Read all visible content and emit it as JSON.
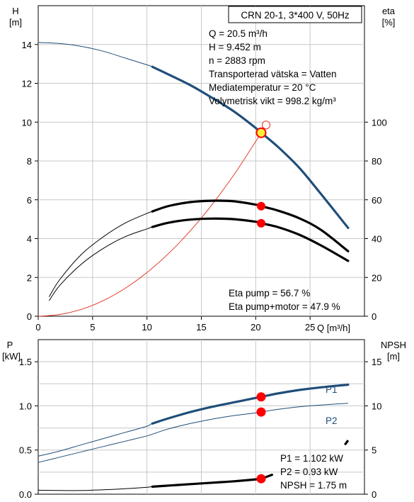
{
  "chart_data": [
    {
      "type": "line",
      "title": "CRN 20-1, 3*400 V, 50Hz",
      "xlabel": "Q [m³/h]",
      "ylabel": "H",
      "ylabel_unit": "[m]",
      "y2label": "eta",
      "y2label_unit": "[%]",
      "xlim": [
        0,
        30
      ],
      "xticks": [
        "0",
        "5",
        "10",
        "15",
        "20",
        "25"
      ],
      "ylim": [
        0,
        16
      ],
      "yticks": [
        "0",
        "2",
        "4",
        "6",
        "8",
        "10",
        "12",
        "14"
      ],
      "y2lim": [
        0,
        160
      ],
      "y2ticks": [
        "0",
        "20",
        "40",
        "60",
        "80",
        "100"
      ],
      "grid": true,
      "info_lines": [
        "Q = 20.5 m³/h",
        "H = 9.452 m",
        "n = 2883 rpm",
        "Transporterad vätska = Vatten",
        "Mediatemperatur = 20 °C",
        "Volymetrisk vikt = 998.2 kg/m³"
      ],
      "eta_lines": [
        "Eta pump = 56.7 %",
        "Eta pump+motor = 47.9 %"
      ],
      "series": [
        {
          "key": "head",
          "color": "#1f4e79",
          "x": [
            0,
            2,
            4,
            6,
            8,
            10,
            10.5,
            12,
            14,
            16,
            18,
            20,
            20.5,
            22,
            24,
            26,
            28.5
          ],
          "y": [
            14.1,
            14.05,
            13.9,
            13.65,
            13.3,
            12.95,
            12.85,
            12.45,
            11.9,
            11.25,
            10.55,
            9.7,
            9.45,
            8.75,
            7.65,
            6.3,
            4.55
          ],
          "thick_from": 10.5
        },
        {
          "key": "system",
          "color": "#e03020",
          "x": [
            0,
            2,
            4,
            6,
            8,
            10,
            12,
            14,
            16,
            18,
            20,
            20.5
          ],
          "y": [
            0,
            0.09,
            0.36,
            0.81,
            1.44,
            2.25,
            3.24,
            4.41,
            5.76,
            7.29,
            9.0,
            9.45
          ]
        },
        {
          "key": "eta_pump",
          "color": "#000000",
          "axis": "right",
          "x": [
            1,
            2,
            4,
            6,
            8,
            10,
            10.5,
            12,
            14,
            16,
            18,
            20,
            20.5,
            22,
            24,
            26,
            28.5
          ],
          "y": [
            10,
            19,
            32,
            41,
            48,
            53,
            54,
            56.8,
            58.8,
            59.5,
            59.2,
            57.5,
            56.7,
            54.5,
            50.5,
            44.5,
            33.5
          ],
          "thick_from": 10.5
        },
        {
          "key": "eta_pump_motor",
          "color": "#000000",
          "axis": "right",
          "x": [
            1,
            2,
            4,
            6,
            8,
            10,
            10.5,
            12,
            14,
            16,
            18,
            20,
            20.5,
            22,
            24,
            26,
            28.5
          ],
          "y": [
            8,
            16,
            27,
            35,
            41,
            45,
            46,
            48.2,
            49.8,
            50.3,
            50.0,
            48.7,
            47.9,
            46.0,
            42.0,
            36.5,
            28.5
          ],
          "thick_from": 10.5
        }
      ],
      "operating_point": {
        "x": 20.5,
        "head": 9.452,
        "eta_pump": 56.7,
        "eta_pump_motor": 47.9
      },
      "colors": {
        "marker": "#ff0000",
        "op_fill": "#f7ef3a"
      }
    },
    {
      "type": "line",
      "xlabel": "",
      "ylabel": "P",
      "ylabel_unit": "[kW]",
      "y2label": "NPSH",
      "y2label_unit": "[m]",
      "xlim": [
        0,
        30
      ],
      "ylim": [
        0,
        1.75
      ],
      "yticks": [
        "0.0",
        "0.5",
        "1.0",
        "1.5"
      ],
      "y2lim": [
        0,
        17.5
      ],
      "y2ticks": [
        "0",
        "5",
        "10",
        "15"
      ],
      "grid": true,
      "info_lines": [
        "P1 = 1.102 kW",
        "P2 = 0.93 kW",
        "NPSH = 1.75 m"
      ],
      "series": [
        {
          "key": "p1",
          "name": "P1",
          "color": "#1f4e79",
          "x": [
            0,
            2,
            4,
            6,
            8,
            10,
            10.5,
            12,
            14,
            16,
            18,
            20,
            20.5,
            22,
            24,
            26,
            28.5
          ],
          "y": [
            0.43,
            0.49,
            0.56,
            0.63,
            0.7,
            0.77,
            0.8,
            0.86,
            0.93,
            0.99,
            1.04,
            1.09,
            1.102,
            1.14,
            1.18,
            1.21,
            1.24
          ],
          "thick_from": 10.5
        },
        {
          "key": "p2",
          "name": "P2",
          "color": "#1f4e79",
          "x": [
            0,
            2,
            4,
            6,
            8,
            10,
            10.5,
            12,
            14,
            16,
            18,
            20,
            20.5,
            22,
            24,
            26,
            28.5
          ],
          "y": [
            0.36,
            0.42,
            0.48,
            0.54,
            0.6,
            0.66,
            0.68,
            0.74,
            0.8,
            0.85,
            0.89,
            0.92,
            0.93,
            0.96,
            0.99,
            1.01,
            1.03
          ]
        },
        {
          "key": "npsh",
          "color": "#000000",
          "axis": "right",
          "x": [
            0,
            2,
            4,
            6,
            8,
            10,
            10.5,
            12,
            14,
            16,
            18,
            20,
            20.5,
            21.5
          ],
          "y": [
            0.45,
            0.42,
            0.42,
            0.5,
            0.62,
            0.78,
            0.85,
            0.98,
            1.14,
            1.3,
            1.46,
            1.68,
            1.75,
            2.2
          ],
          "thick_from": 10.5
        },
        {
          "key": "npsh_tail",
          "color": "#000000",
          "axis": "right",
          "x": [
            28.2,
            28.5
          ],
          "y": [
            5.6,
            6.1
          ]
        }
      ],
      "operating_point": {
        "x": 20.5,
        "p1": 1.102,
        "p2": 0.93,
        "npsh": 1.75
      },
      "colors": {
        "marker": "#ff0000"
      }
    }
  ]
}
